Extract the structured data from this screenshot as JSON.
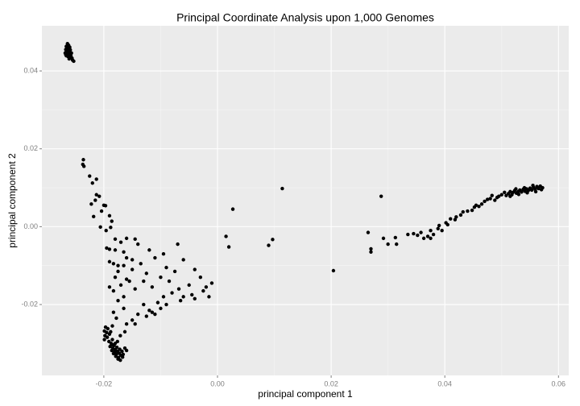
{
  "chart_data": {
    "type": "scatter",
    "title": "Principal Coordinate Analysis upon 1,000 Genomes",
    "x_label": "principal component 1",
    "y_label": "principal component 2",
    "xlim": [
      -0.0309,
      0.0618
    ],
    "ylim": [
      -0.0382,
      0.0516
    ],
    "xticks": [
      -0.02,
      {
        "value": 0,
        "label": "0.00"
      },
      0.02,
      0.04,
      0.06
    ],
    "yticks": [
      -0.02,
      {
        "value": 0,
        "label": "0.00"
      },
      0.02,
      0.04
    ],
    "grid": true,
    "color": "#000000",
    "x": [
      -0.0264,
      -0.0262,
      -0.0266,
      -0.026,
      -0.0265,
      -0.0262,
      -0.0267,
      -0.0259,
      -0.0263,
      -0.0266,
      -0.026,
      -0.0264,
      -0.0268,
      -0.0261,
      -0.0257,
      -0.0265,
      -0.0262,
      -0.0258,
      -0.0266,
      -0.0263,
      -0.026,
      -0.0256,
      -0.0261,
      -0.0253,
      -0.0255,
      -0.0267,
      -0.0263,
      -0.0259,
      -0.0197,
      -0.0193,
      -0.0199,
      -0.0195,
      -0.019,
      -0.0198,
      -0.0194,
      -0.0188,
      -0.0185,
      -0.0191,
      -0.0187,
      -0.0182,
      -0.0189,
      -0.0184,
      -0.018,
      -0.0177,
      -0.0186,
      -0.0181,
      -0.0176,
      -0.0172,
      -0.0183,
      -0.0178,
      -0.0173,
      -0.0168,
      -0.0179,
      -0.0174,
      -0.017,
      -0.0166,
      -0.0175,
      -0.0171,
      -0.0163,
      -0.016,
      -0.0185,
      -0.018,
      -0.0167,
      -0.0199,
      -0.0176,
      -0.0163,
      -0.0171,
      -0.0236,
      -0.0237,
      -0.0235,
      -0.0225,
      -0.0213,
      -0.022,
      -0.0213,
      -0.0208,
      -0.0215,
      -0.0222,
      -0.0218,
      -0.02,
      -0.0197,
      -0.0204,
      -0.019,
      -0.0186,
      -0.0188,
      -0.0206,
      -0.0196,
      -0.018,
      -0.0195,
      -0.019,
      -0.018,
      -0.017,
      -0.016,
      -0.0145,
      -0.014,
      -0.0165,
      -0.015,
      -0.019,
      -0.0183,
      -0.0175,
      -0.016,
      -0.012,
      -0.011,
      -0.0135,
      -0.0095,
      -0.007,
      -0.006,
      -0.009,
      -0.0125,
      -0.015,
      -0.018,
      -0.019,
      -0.0183,
      -0.017,
      -0.016,
      -0.0145,
      -0.013,
      -0.0115,
      -0.01,
      -0.0085,
      -0.0075,
      -0.0068,
      -0.005,
      -0.004,
      -0.003,
      -0.002,
      -0.001,
      -0.0025,
      -0.0015,
      -0.0045,
      -0.006,
      -0.008,
      -0.0095,
      -0.0105,
      -0.0115,
      -0.012,
      -0.011,
      -0.01,
      -0.013,
      -0.014,
      -0.015,
      -0.0165,
      -0.0175,
      -0.0183,
      -0.0178,
      -0.016,
      -0.0145,
      -0.0125,
      -0.009,
      -0.0065,
      -0.004,
      -0.0185,
      -0.0165,
      -0.0155,
      -0.0175,
      -0.0165,
      0.0015,
      0.002,
      0.0027,
      0.009,
      0.0097,
      0.0114,
      0.0204,
      0.0265,
      0.027,
      0.027,
      0.0288,
      0.0292,
      0.03,
      0.0313,
      0.0315,
      0.0335,
      0.0345,
      0.0352,
      0.0358,
      0.0363,
      0.037,
      0.0375,
      0.038,
      0.0388,
      0.039,
      0.0395,
      0.0402,
      0.0405,
      0.041,
      0.0418,
      0.042,
      0.0428,
      0.0432,
      0.044,
      0.0448,
      0.0452,
      0.046,
      0.0465,
      0.047,
      0.0475,
      0.048,
      0.0483,
      0.0488,
      0.0495,
      0.05,
      0.0505,
      0.0508,
      0.0512,
      0.0515,
      0.0518,
      0.052,
      0.0523,
      0.0526,
      0.0529,
      0.0532,
      0.0535,
      0.0538,
      0.0541,
      0.0544,
      0.0547,
      0.055,
      0.0553,
      0.0556,
      0.0559,
      0.0562,
      0.0565,
      0.0568,
      0.057,
      0.056,
      0.0545,
      0.053,
      0.0515,
      0.0525,
      0.054,
      0.0555,
      0.0572,
      0.0375,
      0.0455,
      0.0492
    ],
    "values": [
      0.047,
      0.0466,
      0.0463,
      0.0461,
      0.0458,
      0.0456,
      0.0455,
      0.0454,
      0.0452,
      0.045,
      0.0449,
      0.0447,
      0.0446,
      0.0445,
      0.0446,
      0.0443,
      0.0441,
      0.044,
      0.0439,
      0.0437,
      0.0435,
      0.0433,
      0.0431,
      0.0425,
      0.0428,
      0.0442,
      0.046,
      0.0443,
      -0.0258,
      -0.0262,
      -0.0268,
      -0.0272,
      -0.0276,
      -0.028,
      -0.0284,
      -0.027,
      -0.029,
      -0.0295,
      -0.03,
      -0.0305,
      -0.0308,
      -0.0312,
      -0.0316,
      -0.031,
      -0.0318,
      -0.0322,
      -0.032,
      -0.0315,
      -0.0326,
      -0.0328,
      -0.0325,
      -0.032,
      -0.0333,
      -0.0336,
      -0.033,
      -0.0328,
      -0.034,
      -0.0343,
      -0.0312,
      -0.0318,
      -0.0303,
      -0.03,
      -0.0335,
      -0.029,
      -0.0295,
      -0.027,
      -0.028,
      0.0172,
      0.016,
      0.0155,
      0.013,
      0.0122,
      0.0112,
      0.0082,
      0.0078,
      0.0068,
      0.0058,
      0.0026,
      0.0055,
      0.0054,
      0.004,
      0.0028,
      0.0014,
      -0.0002,
      -0.0001,
      -0.001,
      -0.0032,
      -0.0055,
      -0.0058,
      -0.006,
      -0.004,
      -0.003,
      -0.0032,
      -0.0045,
      -0.0065,
      -0.0085,
      -0.009,
      -0.0095,
      -0.01,
      -0.008,
      -0.006,
      -0.008,
      -0.0095,
      -0.007,
      -0.0045,
      -0.0085,
      -0.0105,
      -0.012,
      -0.011,
      -0.013,
      -0.0155,
      -0.0165,
      -0.015,
      -0.0135,
      -0.016,
      -0.014,
      -0.0155,
      -0.013,
      -0.014,
      -0.0115,
      -0.016,
      -0.015,
      -0.011,
      -0.013,
      -0.0155,
      -0.0145,
      -0.0165,
      -0.018,
      -0.0175,
      -0.018,
      -0.017,
      -0.018,
      -0.0195,
      -0.022,
      -0.0215,
      -0.0225,
      -0.021,
      -0.02,
      -0.0225,
      -0.024,
      -0.021,
      -0.019,
      -0.022,
      -0.0235,
      -0.025,
      -0.025,
      -0.023,
      -0.02,
      -0.019,
      -0.0185,
      -0.0255,
      -0.018,
      -0.014,
      -0.0115,
      -0.01,
      -0.0025,
      -0.0052,
      0.0045,
      -0.0048,
      -0.0033,
      0.0098,
      -0.0113,
      -0.0015,
      -0.0057,
      -0.0065,
      0.0078,
      -0.003,
      -0.0045,
      -0.0028,
      -0.0045,
      -0.002,
      -0.0018,
      -0.0022,
      -0.0015,
      -0.003,
      -0.0025,
      -0.001,
      -0.002,
      -0.0005,
      0.0003,
      -0.001,
      0.001,
      0.0005,
      0.002,
      0.0018,
      0.0025,
      0.003,
      0.0038,
      0.004,
      0.0042,
      0.005,
      0.0052,
      0.0058,
      0.0065,
      0.007,
      0.0072,
      0.008,
      0.0068,
      0.0078,
      0.0082,
      0.0088,
      0.008,
      0.0085,
      0.009,
      0.0082,
      0.0088,
      0.0093,
      0.0086,
      0.009,
      0.0094,
      0.0089,
      0.0096,
      0.0091,
      0.0097,
      0.0093,
      0.0099,
      0.0094,
      0.0101,
      0.0096,
      0.0103,
      0.0098,
      0.0104,
      0.0095,
      0.009,
      0.0087,
      0.0083,
      0.0078,
      0.0097,
      0.01,
      0.0106,
      0.01,
      -0.003,
      0.0055,
      0.0075
    ]
  }
}
